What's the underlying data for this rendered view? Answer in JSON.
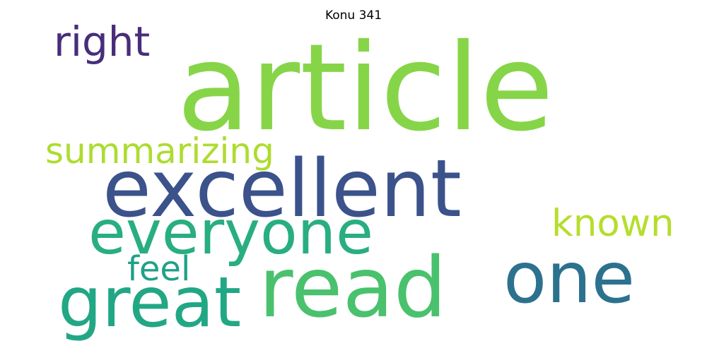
{
  "title": "Konu 341",
  "words": [
    {
      "id": "article",
      "text": "article",
      "color": "#86d549"
    },
    {
      "id": "excellent",
      "text": "excellent",
      "color": "#3b528b"
    },
    {
      "id": "everyone",
      "text": "everyone",
      "color": "#28ae80"
    },
    {
      "id": "read",
      "text": "read",
      "color": "#4ac16d"
    },
    {
      "id": "great",
      "text": "great",
      "color": "#22a785"
    },
    {
      "id": "one",
      "text": "one",
      "color": "#2c728e"
    },
    {
      "id": "right",
      "text": "right",
      "color": "#472d7b"
    },
    {
      "id": "summarizing",
      "text": "summarizing",
      "color": "#addc30"
    },
    {
      "id": "known",
      "text": "known",
      "color": "#b5de2b"
    },
    {
      "id": "feel",
      "text": "feel",
      "color": "#1fa188"
    }
  ]
}
